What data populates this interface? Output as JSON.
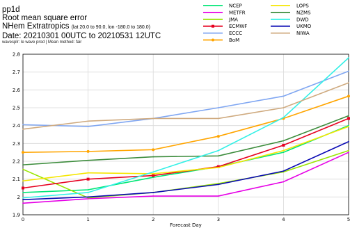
{
  "header": {
    "line1": "pp1d",
    "line2": "Root mean square error",
    "region": "NHem Extratropics",
    "region_detail": "(lat  20.0 to 90.0, lon  -180.0 to  180.0)",
    "date": "Date: 20210301 00UTC to 20210531 12UTC",
    "note": "wavesplr: le wave prod | Mean method: fair"
  },
  "chart_data": {
    "type": "line",
    "title": "",
    "xlabel": "Forecast Day",
    "ylabel": "",
    "x": [
      0,
      1,
      2,
      3,
      4,
      5
    ],
    "xlim": [
      0,
      5
    ],
    "ylim": [
      1.9,
      2.8
    ],
    "yticks": [
      "1.9",
      "2",
      "2.1",
      "2.2",
      "2.3",
      "2.4",
      "2.5",
      "2.6",
      "2.7",
      "2.8"
    ],
    "xticks": [
      "0",
      "1",
      "2",
      "3",
      "4",
      "5"
    ],
    "grid": true,
    "legend_position": "top-right",
    "series": [
      {
        "name": "NCEP",
        "color": "#00e676",
        "marker": "none",
        "values": [
          2.025,
          2.04,
          2.11,
          2.17,
          2.25,
          2.4
        ]
      },
      {
        "name": "METFR",
        "color": "#e600e6",
        "marker": "none",
        "values": [
          1.965,
          1.99,
          2.005,
          2.005,
          2.085,
          2.25
        ]
      },
      {
        "name": "JMA",
        "color": "#99e600",
        "marker": "none",
        "values": [
          2.155,
          1.995,
          2.025,
          2.075,
          2.14,
          2.26
        ]
      },
      {
        "name": "ECMWF",
        "color": "#e6001f",
        "marker": "square",
        "values": [
          2.05,
          2.1,
          2.12,
          2.17,
          2.29,
          2.44
        ]
      },
      {
        "name": "ECCC",
        "color": "#7fa6f2",
        "marker": "none",
        "values": [
          2.405,
          2.395,
          2.44,
          2.5,
          2.565,
          2.705
        ]
      },
      {
        "name": "BoM",
        "color": "#ffa500",
        "marker": "circle",
        "values": [
          2.25,
          2.255,
          2.265,
          2.34,
          2.44,
          2.565
        ]
      },
      {
        "name": "LOPS",
        "color": "#f5e600",
        "marker": "none",
        "values": [
          2.09,
          2.135,
          2.13,
          2.165,
          2.26,
          2.395
        ]
      },
      {
        "name": "NZMS",
        "color": "#3c8c3c",
        "marker": "none",
        "values": [
          2.18,
          2.205,
          2.225,
          2.23,
          2.315,
          2.455
        ]
      },
      {
        "name": "DWD",
        "color": "#33f0e6",
        "marker": "none",
        "values": [
          1.995,
          2.025,
          2.14,
          2.26,
          2.445,
          2.78
        ]
      },
      {
        "name": "UKMO",
        "color": "#0a0ab4",
        "marker": "none",
        "values": [
          1.985,
          2.0,
          2.025,
          2.07,
          2.145,
          2.31
        ]
      },
      {
        "name": "NIWA",
        "color": "#cfaa7f",
        "marker": "none",
        "values": [
          2.38,
          2.425,
          2.44,
          2.44,
          2.5,
          2.64
        ]
      }
    ]
  }
}
